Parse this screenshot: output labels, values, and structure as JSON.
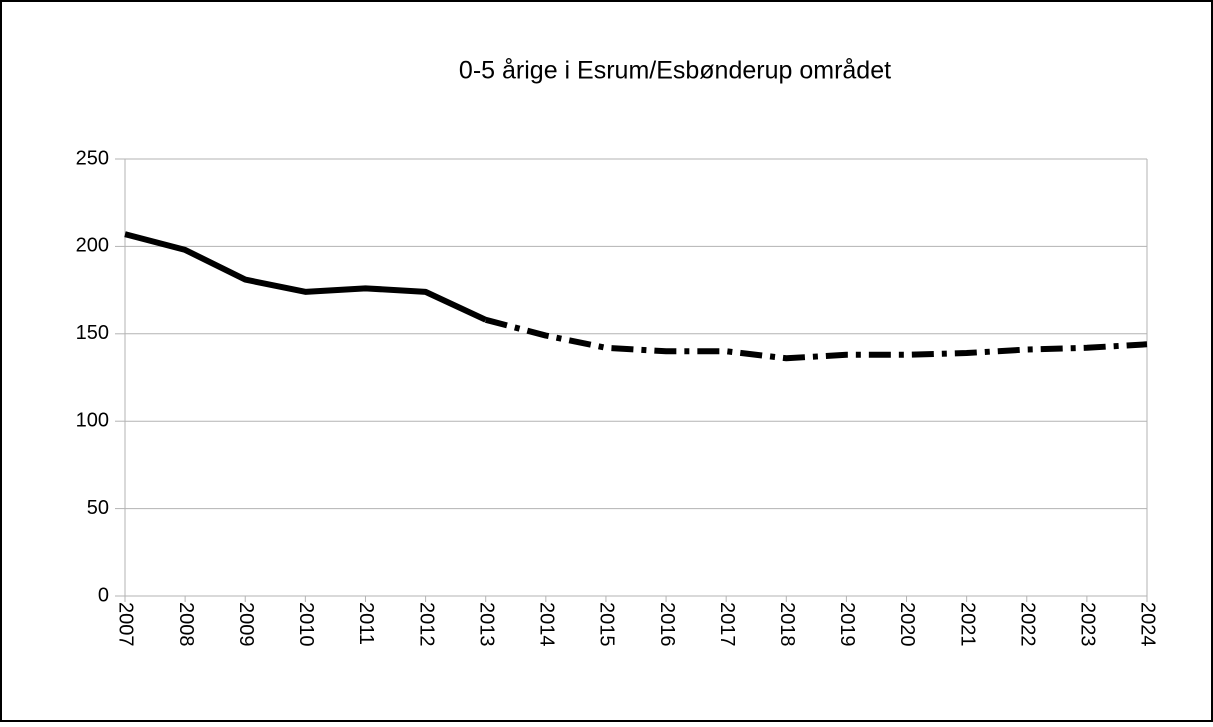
{
  "chart_data": {
    "type": "line",
    "title": "0-5 årige i  Esrum/Esbønderup området",
    "categories": [
      "2007",
      "2008",
      "2009",
      "2010",
      "2011",
      "2012",
      "2013",
      "2014",
      "2015",
      "2016",
      "2017",
      "2018",
      "2019",
      "2020",
      "2021",
      "2022",
      "2023",
      "2024"
    ],
    "series": [
      {
        "color": "#000000",
        "dash": "solid",
        "values": [
          207,
          198,
          181,
          174,
          176,
          174,
          158,
          null,
          null,
          null,
          null,
          null,
          null,
          null,
          null,
          null,
          null,
          null
        ]
      },
      {
        "color": "#000000",
        "dash": "dashdot",
        "values": [
          null,
          null,
          null,
          null,
          null,
          null,
          158,
          149,
          142,
          140,
          140,
          136,
          138,
          138,
          139,
          141,
          142,
          144
        ]
      }
    ],
    "ylim": [
      0,
      250
    ],
    "yticks": [
      0,
      50,
      100,
      150,
      200,
      250
    ],
    "grid": true
  }
}
